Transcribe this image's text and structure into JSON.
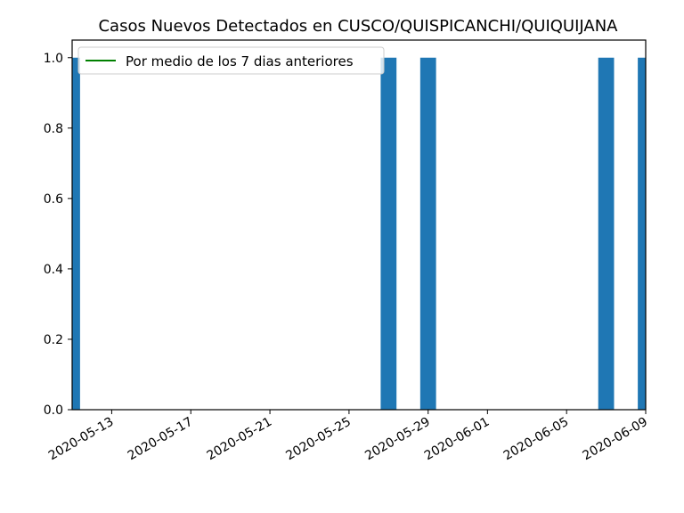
{
  "chart_data": {
    "type": "bar",
    "title": "Casos Nuevos Detectados en CUSCO/QUISPICANCHI/QUIQUIJANA",
    "xlabel": "",
    "ylabel": "",
    "x": [
      "2020-05-11",
      "2020-05-27",
      "2020-05-29",
      "2020-06-07",
      "2020-06-09"
    ],
    "values": [
      1,
      1,
      1,
      1,
      1
    ],
    "xlim": [
      "2020-05-11",
      "2020-06-09"
    ],
    "ylim": [
      0,
      1.05
    ],
    "x_ticks": [
      "2020-05-13",
      "2020-05-17",
      "2020-05-21",
      "2020-05-25",
      "2020-05-29",
      "2020-06-01",
      "2020-06-05",
      "2020-06-09"
    ],
    "y_ticks": [
      "0.0",
      "0.2",
      "0.4",
      "0.6",
      "0.8",
      "1.0"
    ],
    "bar_color": "#1f77b4",
    "legend": {
      "position": "top-left",
      "entries": [
        {
          "label": "Por medio de los 7 dias anteriores",
          "color": "#008000",
          "kind": "line"
        }
      ]
    },
    "grid": false
  }
}
